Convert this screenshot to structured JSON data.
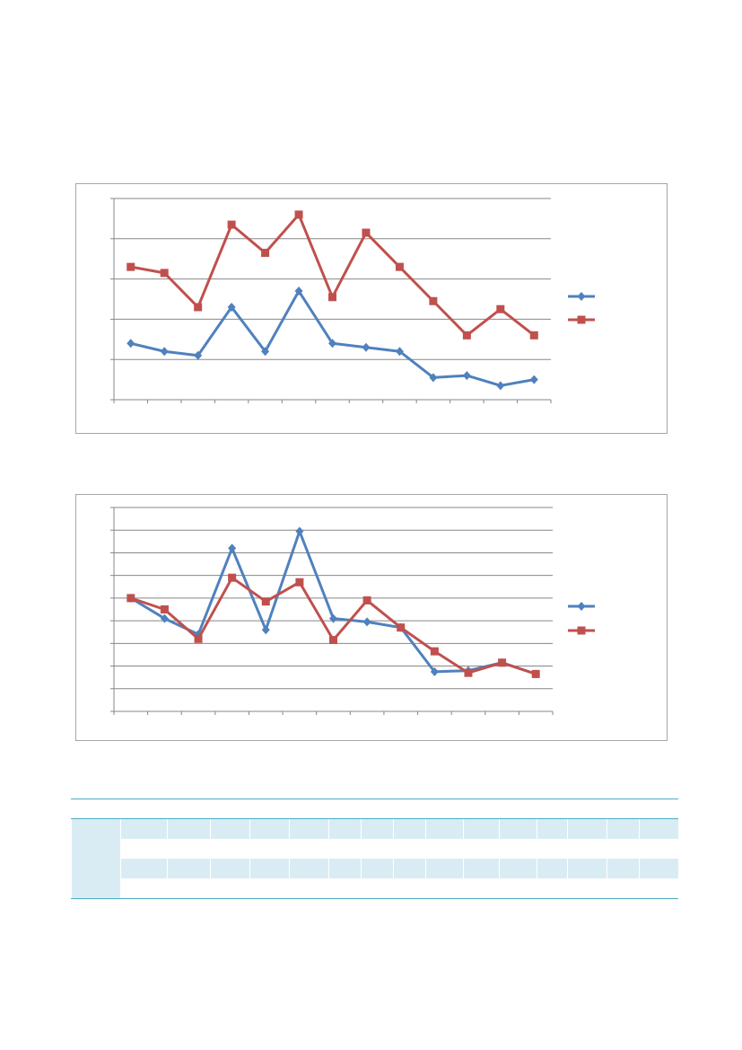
{
  "chart_data": [
    {
      "type": "line",
      "categories": [
        "",
        "",
        "",
        "",
        "",
        "",
        "",
        "",
        "",
        "",
        "",
        "",
        ""
      ],
      "y_gridlines": 5,
      "x_ticks": 13,
      "ylim": [
        0,
        5
      ],
      "legend": "right",
      "series": [
        {
          "color": "#4f81bd",
          "marker": "diamond",
          "values": [
            1.4,
            1.2,
            1.1,
            2.3,
            1.2,
            2.7,
            1.4,
            1.3,
            1.2,
            0.55,
            0.6,
            0.35,
            0.5
          ]
        },
        {
          "color": "#c0504d",
          "marker": "square",
          "values": [
            3.3,
            3.15,
            2.3,
            4.35,
            3.65,
            4.6,
            2.55,
            4.15,
            3.3,
            2.45,
            1.6,
            2.25,
            1.6
          ]
        }
      ]
    },
    {
      "type": "line",
      "categories": [
        "",
        "",
        "",
        "",
        "",
        "",
        "",
        "",
        "",
        "",
        "",
        "",
        ""
      ],
      "y_gridlines": 9,
      "x_ticks": 13,
      "ylim": [
        0,
        9
      ],
      "legend": "right",
      "series": [
        {
          "color": "#4f81bd",
          "marker": "diamond",
          "values": [
            5.0,
            4.1,
            3.4,
            7.2,
            3.6,
            7.95,
            4.1,
            3.95,
            3.7,
            1.75,
            1.8,
            2.15,
            1.65
          ]
        },
        {
          "color": "#c0504d",
          "marker": "square",
          "values": [
            5.0,
            4.5,
            3.2,
            5.9,
            4.85,
            5.7,
            3.15,
            4.9,
            3.7,
            2.65,
            1.7,
            2.15,
            1.65
          ]
        }
      ]
    }
  ]
}
